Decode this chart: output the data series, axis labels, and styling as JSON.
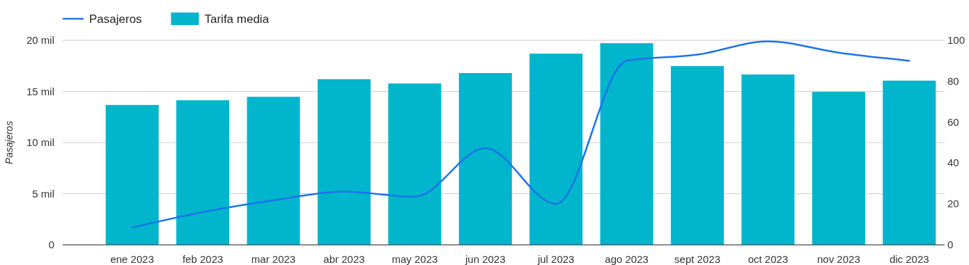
{
  "chart_data": {
    "type": "bar",
    "ylabel": "Pasajeros",
    "categories": [
      "ene 2023",
      "feb 2023",
      "mar 2023",
      "abr 2023",
      "may 2023",
      "jun 2023",
      "jul 2023",
      "ago 2023",
      "sept 2023",
      "oct 2023",
      "nov 2023",
      "dic 2023"
    ],
    "series": [
      {
        "name": "Pasajeros",
        "type": "line",
        "color": "#1a73e8",
        "values": [
          1.7,
          3.2,
          4.35,
          5.2,
          4.7,
          9.45,
          4.0,
          18.0,
          18.6,
          19.9,
          18.8,
          18.0
        ]
      },
      {
        "name": "Tarifa media",
        "axis": "y2",
        "color": "#00b5cc",
        "values": [
          68.4,
          70.7,
          72.4,
          81,
          78.9,
          84,
          93.5,
          98.6,
          87.4,
          83.3,
          74.8,
          80.3
        ]
      }
    ],
    "ylim": [
      0,
      20
    ],
    "yticks": [
      0,
      {
        "value": 5,
        "label": "5 mil"
      },
      {
        "value": 10,
        "label": "10 mil"
      },
      {
        "value": 15,
        "label": "15 mil"
      },
      {
        "value": 20,
        "label": "20 mil"
      }
    ],
    "y2lim": [
      0,
      100
    ],
    "y2ticks": [
      0,
      20,
      40,
      60,
      80,
      100
    ],
    "grid": "y",
    "legend": "top left"
  }
}
